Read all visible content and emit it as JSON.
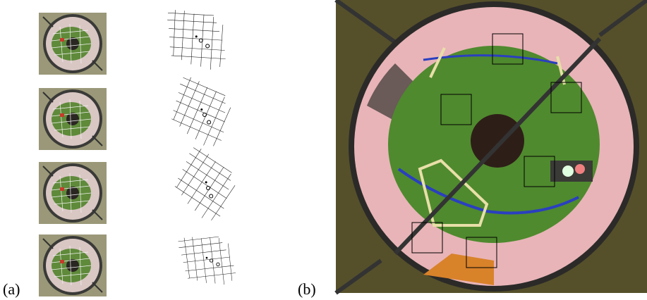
{
  "figure": {
    "label_a": "(a)",
    "label_b": "(b)"
  }
}
